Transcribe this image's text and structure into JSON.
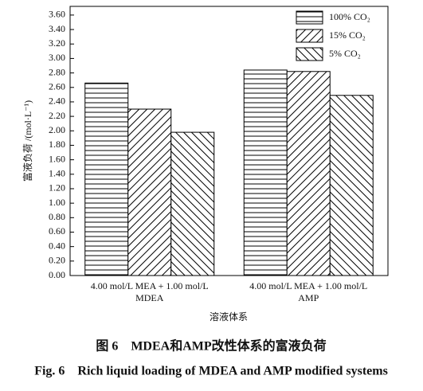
{
  "chart_data": {
    "type": "bar",
    "ylabel": "富液负荷 /(mol·L⁻¹)",
    "xlabel": "溶液体系",
    "categories": [
      [
        "4.00 mol/L MEA + 1.00 mol/L",
        "MDEA"
      ],
      [
        "4.00 mol/L MEA + 1.00 mol/L",
        "AMP"
      ]
    ],
    "series": [
      {
        "name": "100% CO₂",
        "color": "#000000",
        "hatch": "horizontal",
        "values": [
          2.66,
          2.84
        ]
      },
      {
        "name": "15% CO₂",
        "color": "#000000",
        "hatch": "forward",
        "values": [
          2.3,
          2.82
        ]
      },
      {
        "name": "5% CO₂",
        "color": "#000000",
        "hatch": "backward",
        "values": [
          1.98,
          2.49
        ]
      }
    ],
    "ylim": [
      0,
      3.72
    ],
    "yticks": [
      {
        "value": 0,
        "label": "0.00"
      },
      {
        "value": 0.2,
        "label": "0.20"
      },
      {
        "value": 0.4,
        "label": "0.40"
      },
      {
        "value": 0.6,
        "label": "0.60"
      },
      {
        "value": 0.8,
        "label": "0.80"
      },
      {
        "value": 1,
        "label": "1.00"
      },
      {
        "value": 1.2,
        "label": "1.20"
      },
      {
        "value": 1.4,
        "label": "1.40"
      },
      {
        "value": 1.6,
        "label": "1.60"
      },
      {
        "value": 1.8,
        "label": "1.80"
      },
      {
        "value": 2,
        "label": "2.00"
      },
      {
        "value": 2.2,
        "label": "2.20"
      },
      {
        "value": 2.4,
        "label": "2.40"
      },
      {
        "value": 2.6,
        "label": "2.60"
      },
      {
        "value": 2.8,
        "label": "2.80"
      },
      {
        "value": 3,
        "label": "3.00"
      },
      {
        "value": 3.2,
        "label": "3.20"
      },
      {
        "value": 3.4,
        "label": "3.40"
      },
      {
        "value": 3.6,
        "label": "3.60"
      }
    ],
    "legend": "upper right",
    "caption_cn": "图 6　MDEA和AMP改性体系的富液负荷",
    "caption_en": "Fig. 6　Rich liquid loading of MDEA and AMP modified systems"
  }
}
